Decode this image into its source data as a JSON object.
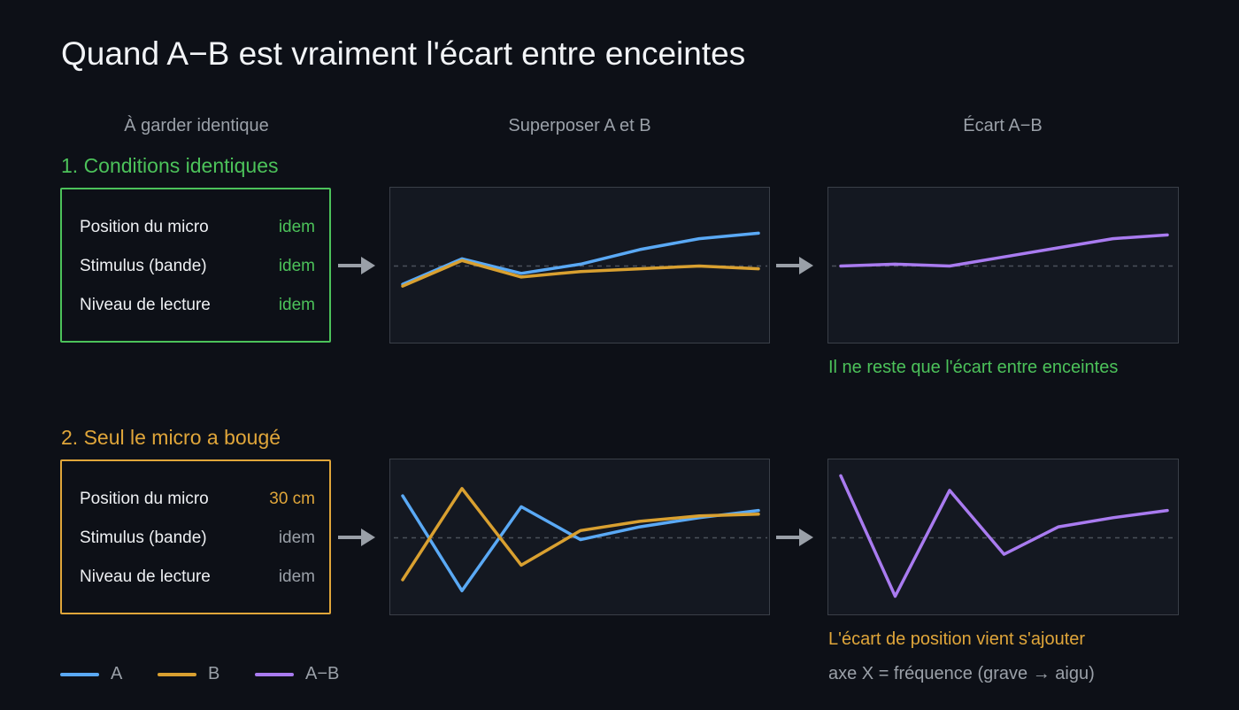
{
  "title": "Quand A−B est vraiment l'écart entre enceintes",
  "columns": [
    "À garder identique",
    "Superposer A et B",
    "Écart A−B"
  ],
  "colors": {
    "A": "#5aa9f5",
    "B": "#d9a030",
    "diff": "#a97bf0",
    "ok": "#4cc25a",
    "warn": "#e0a63a",
    "neutral": "#9aa0a8"
  },
  "scenarios": [
    {
      "title": "1. Conditions identiques",
      "color": "#4cc25a",
      "conditions": [
        {
          "label": "Position du micro",
          "value": "idem",
          "changed": false
        },
        {
          "label": "Stimulus (bande)",
          "value": "idem",
          "changed": false
        },
        {
          "label": "Niveau de lecture",
          "value": "idem",
          "changed": false
        }
      ],
      "caption": "Il ne reste que l'écart entre enceintes"
    },
    {
      "title": "2. Seul le micro a bougé",
      "color": "#e0a63a",
      "conditions": [
        {
          "label": "Position du micro",
          "value": "30 cm",
          "changed": true
        },
        {
          "label": "Stimulus (bande)",
          "value": "idem",
          "changed": false
        },
        {
          "label": "Niveau de lecture",
          "value": "idem",
          "changed": false
        }
      ],
      "caption": "L'écart de position vient s'ajouter"
    }
  ],
  "chart_data": [
    {
      "type": "line",
      "x": [
        0,
        1,
        2,
        3,
        4,
        5,
        6
      ],
      "ylim": [
        -4,
        4
      ],
      "series": [
        {
          "name": "A",
          "values": [
            -1.0,
            0.4,
            -0.4,
            0.1,
            0.9,
            1.5,
            1.8
          ]
        },
        {
          "name": "B",
          "values": [
            -1.1,
            0.3,
            -0.6,
            -0.3,
            -0.15,
            0.0,
            -0.15
          ]
        }
      ]
    },
    {
      "type": "line",
      "x": [
        0,
        1,
        2,
        3,
        4,
        5,
        6
      ],
      "ylim": [
        -4,
        4
      ],
      "series": [
        {
          "name": "A−B",
          "values": [
            0.0,
            0.1,
            0.0,
            0.5,
            1.0,
            1.5,
            1.7
          ]
        }
      ]
    },
    {
      "type": "line",
      "x": [
        0,
        1,
        2,
        3,
        4,
        5,
        6
      ],
      "ylim": [
        -4,
        4
      ],
      "series": [
        {
          "name": "A",
          "values": [
            2.3,
            -2.9,
            1.7,
            -0.1,
            0.6,
            1.1,
            1.5
          ]
        },
        {
          "name": "B",
          "values": [
            -2.3,
            2.7,
            -1.5,
            0.4,
            0.9,
            1.2,
            1.3
          ]
        }
      ]
    },
    {
      "type": "line",
      "x": [
        0,
        1,
        2,
        3,
        4,
        5,
        6
      ],
      "ylim": [
        -4,
        4
      ],
      "series": [
        {
          "name": "A−B",
          "values": [
            3.4,
            -3.2,
            2.6,
            -0.9,
            0.6,
            1.1,
            1.5
          ]
        }
      ]
    }
  ],
  "legend": [
    {
      "key": "A",
      "label": "A"
    },
    {
      "key": "B",
      "label": "B"
    },
    {
      "key": "diff",
      "label": "A−B"
    }
  ],
  "footnote": "axe X = fréquence (grave → aigu)"
}
